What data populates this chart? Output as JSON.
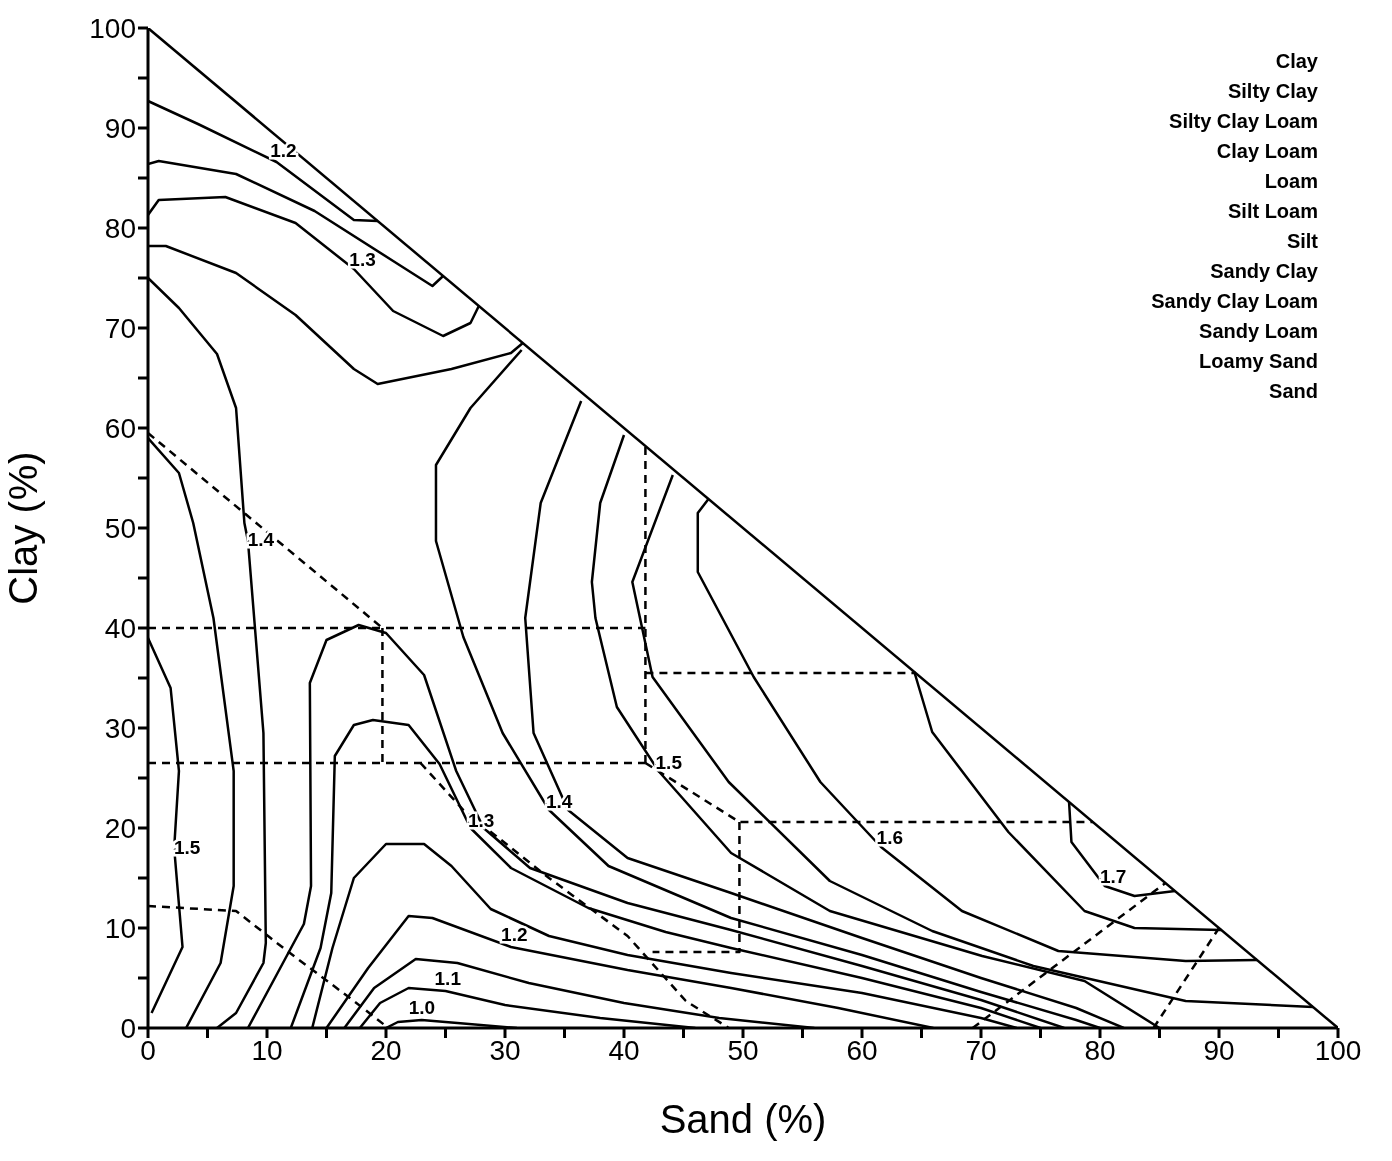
{
  "chart_data": {
    "type": "line",
    "xlabel": "Sand (%)",
    "ylabel": "Clay (%)",
    "xlim": [
      0,
      100
    ],
    "ylim": [
      0,
      100
    ],
    "xticks": [
      0,
      {
        "value": 5,
        "label": null
      },
      10,
      {
        "value": 15,
        "label": null
      },
      20,
      {
        "value": 25,
        "label": null
      },
      30,
      {
        "value": 35,
        "label": null
      },
      40,
      {
        "value": 45,
        "label": null
      },
      50,
      {
        "value": 55,
        "label": null
      },
      60,
      {
        "value": 65,
        "label": null
      },
      70,
      {
        "value": 75,
        "label": null
      },
      80,
      {
        "value": 85,
        "label": null
      },
      90,
      {
        "value": 95,
        "label": null
      },
      100
    ],
    "yticks": [
      0,
      {
        "value": 5,
        "label": null
      },
      10,
      {
        "value": 15,
        "label": null
      },
      20,
      {
        "value": 25,
        "label": null
      },
      30,
      {
        "value": 35,
        "label": null
      },
      40,
      {
        "value": 45,
        "label": null
      },
      50,
      {
        "value": 55,
        "label": null
      },
      60,
      {
        "value": 65,
        "label": null
      },
      70,
      {
        "value": 75,
        "label": null
      },
      80,
      {
        "value": 85,
        "label": null
      },
      90,
      {
        "value": 95,
        "label": null
      },
      100
    ],
    "grid": false,
    "marker": "none",
    "line_style": "solid",
    "series": [
      {
        "color": "#000000",
        "x": [
          0,
          100
        ],
        "values": [
          100,
          0
        ]
      },
      {
        "name": "1.2",
        "color": "#000000",
        "x": [
          0,
          4.2,
          10.8,
          17.3,
          19.3
        ],
        "values": [
          92.7,
          90.4,
          86.6,
          80.8,
          80.7
        ]
      },
      {
        "color": "#000000",
        "x": [
          0,
          0.9,
          7.4,
          14,
          20.6,
          23.9,
          24.8
        ],
        "values": [
          86.4,
          86.7,
          85.4,
          81.7,
          76.7,
          74.2,
          75.2
        ]
      },
      {
        "name": "1.3",
        "color": "#000000",
        "x": [
          0,
          0.9,
          6.5,
          12.4,
          17.3,
          20.6,
          24.8,
          27.1,
          27.8
        ],
        "values": [
          81.3,
          82.8,
          83.1,
          80.5,
          75.9,
          71.7,
          69.2,
          70.5,
          72.2
        ]
      },
      {
        "color": "#000000",
        "x": [
          0,
          1.5,
          7.4,
          12.4,
          17.3,
          19.3,
          25.5,
          30.5,
          31.5
        ],
        "values": [
          78.2,
          78.2,
          75.5,
          71.3,
          65.9,
          64.4,
          65.9,
          67.5,
          68.5
        ]
      },
      {
        "name": "1.4",
        "color": "#000000",
        "x": [
          0,
          2.6,
          5.8,
          7.4,
          8.1,
          8.4,
          9.7,
          9.9,
          9.7,
          7.4,
          5.8
        ],
        "values": [
          75,
          72,
          67.4,
          62,
          50.5,
          48.7,
          29.5,
          8.5,
          6.5,
          1.5,
          0
        ]
      },
      {
        "color": "#000000",
        "x": [
          0,
          2.6,
          3.8,
          5.5,
          7.2,
          7.2,
          6.1,
          3.2
        ],
        "values": [
          59,
          55.5,
          50.5,
          41,
          25.7,
          14.2,
          6.5,
          0
        ]
      },
      {
        "name": "1.5",
        "color": "#000000",
        "x": [
          0,
          1.9,
          2.6,
          2.2,
          2.9,
          0.3
        ],
        "values": [
          39,
          34,
          25.7,
          18,
          8.1,
          1.5
        ]
      },
      {
        "color": "#000000",
        "x": [
          8.4,
          13.1,
          13.7,
          13.6,
          15,
          17.7,
          20,
          23.2,
          25.9,
          28.2,
          32.1,
          40.3,
          49,
          60,
          70,
          77
        ],
        "values": [
          0,
          10.4,
          14.2,
          34.5,
          38.8,
          40.3,
          39.5,
          35.3,
          25.7,
          20,
          16,
          12.5,
          9.8,
          6.2,
          2.8,
          0
        ]
      },
      {
        "name": "1.3",
        "color": "#000000",
        "x": [
          12,
          14.5,
          15.4,
          15.7,
          17.3,
          18.9,
          21.9,
          24.5,
          27.1,
          30.5,
          37,
          43.5,
          49,
          60,
          70,
          75
        ],
        "values": [
          0,
          8,
          13.5,
          27.2,
          30.3,
          30.8,
          30.3,
          26.4,
          20,
          16,
          12,
          9.6,
          8,
          5,
          2,
          0
        ]
      },
      {
        "color": "#000000",
        "x": [
          13.8,
          15.5,
          17.3,
          20,
          23.2,
          25.5,
          28.8,
          33.7,
          40.3,
          49,
          60,
          70,
          73
        ],
        "values": [
          0,
          8,
          15,
          18.4,
          18.4,
          16.2,
          11.9,
          9.2,
          7.3,
          5.5,
          3.5,
          1,
          0
        ]
      },
      {
        "name": "1.2",
        "color": "#000000",
        "x": [
          15,
          18.5,
          21.9,
          23.9,
          30.5,
          40.3,
          49,
          58,
          66
        ],
        "values": [
          0,
          6,
          11.2,
          11,
          8.1,
          5.8,
          4,
          2,
          0
        ]
      },
      {
        "color": "#000000",
        "x": [
          16.5,
          19,
          22.5,
          26,
          32,
          40,
          48,
          56
        ],
        "values": [
          0,
          4,
          6.9,
          6.5,
          4.5,
          2.5,
          1,
          0
        ]
      },
      {
        "name": "1.1",
        "color": "#000000",
        "x": [
          17.8,
          19.5,
          21.9,
          25,
          30,
          38,
          46
        ],
        "values": [
          0,
          2.5,
          4,
          3.7,
          2.3,
          1,
          0
        ]
      },
      {
        "name": "1.0",
        "color": "#000000",
        "x": [
          20,
          21,
          23,
          26,
          31
        ],
        "values": [
          0,
          0.6,
          0.8,
          0.5,
          0
        ]
      },
      {
        "name": "1.4",
        "color": "#000000",
        "x": [
          31.4,
          27.1,
          24.2,
          24.2,
          26.5,
          29.8,
          33.7,
          38.7,
          49,
          60,
          70,
          78,
          80
        ],
        "values": [
          67.8,
          62,
          56.3,
          48.7,
          39.1,
          29.5,
          21.8,
          16.2,
          11,
          7.3,
          3.6,
          0.8,
          0
        ]
      },
      {
        "color": "#000000",
        "x": [
          36.4,
          33,
          31.7,
          32.4,
          35.3,
          40.3,
          49,
          60,
          70,
          78,
          82
        ],
        "values": [
          62.7,
          52.5,
          41,
          29.5,
          21.8,
          17,
          13.5,
          9,
          5,
          2,
          0
        ]
      },
      {
        "name": "1.5",
        "color": "#000000",
        "x": [
          40,
          38,
          37.3,
          37.6,
          39.4,
          42.9,
          49,
          57.3,
          70.1,
          78.7,
          85
        ],
        "values": [
          59.3,
          52.5,
          44.6,
          41,
          32.1,
          25.7,
          17.5,
          11.7,
          7.2,
          4.7,
          0
        ]
      },
      {
        "color": "#000000",
        "x": [
          44.1,
          40.7,
          42.4,
          48.8,
          57.3,
          65.9,
          74.4,
          87.2,
          97.9
        ],
        "values": [
          55.3,
          44.6,
          35.1,
          24.6,
          14.7,
          9.7,
          6.2,
          2.7,
          2.1
        ]
      },
      {
        "name": "1.6",
        "color": "#000000",
        "x": [
          47.1,
          46.2,
          46.2,
          50.9,
          56.5,
          61.6,
          68.4,
          76.5,
          87.2,
          93.2
        ],
        "values": [
          52.9,
          51.5,
          45.6,
          35.1,
          24.6,
          18.1,
          11.7,
          7.7,
          6.7,
          6.8
        ]
      },
      {
        "color": "#000000",
        "x": [
          64.4,
          65.9,
          72.3,
          78.7,
          82.9,
          90.2
        ],
        "values": [
          35.6,
          29.6,
          19.6,
          11.7,
          10,
          9.8
        ]
      },
      {
        "name": "1.7",
        "color": "#000000",
        "x": [
          77.4,
          77.6,
          80.4,
          82.9,
          86.3
        ],
        "values": [
          22.6,
          18.6,
          14.2,
          13.2,
          13.7
        ]
      },
      {
        "color": "#000000",
        "line_style": "dashed",
        "x": [
          0,
          19.7
        ],
        "values": [
          59.5,
          40
        ]
      },
      {
        "color": "#000000",
        "line_style": "dashed",
        "x": [
          0,
          41.8
        ],
        "values": [
          40,
          40
        ]
      },
      {
        "color": "#000000",
        "line_style": "dashed",
        "x": [
          19.7,
          19.7
        ],
        "values": [
          40,
          26.5
        ]
      },
      {
        "color": "#000000",
        "line_style": "dashed",
        "x": [
          0,
          41.8
        ],
        "values": [
          26.5,
          26.5
        ]
      },
      {
        "color": "#000000",
        "line_style": "dashed",
        "x": [
          41.8,
          41.8
        ],
        "values": [
          26.5,
          58.2
        ]
      },
      {
        "color": "#000000",
        "line_style": "dashed",
        "x": [
          41.8,
          64.5
        ],
        "values": [
          35.5,
          35.5
        ]
      },
      {
        "color": "#000000",
        "line_style": "dashed",
        "x": [
          41.8,
          49.7,
          79.4
        ],
        "values": [
          26.5,
          20.6,
          20.6
        ]
      },
      {
        "color": "#000000",
        "line_style": "dashed",
        "x": [
          49.7,
          49.7,
          42.4
        ],
        "values": [
          20.6,
          7.6,
          7.6
        ]
      },
      {
        "color": "#000000",
        "line_style": "dashed",
        "x": [
          22.9,
          26.5,
          33.7,
          40.3,
          45.2,
          48.8
        ],
        "values": [
          26.5,
          21.8,
          15,
          9.2,
          2.7,
          0
        ]
      },
      {
        "color": "#000000",
        "line_style": "dashed",
        "x": [
          0,
          7.4,
          11.7,
          17.3,
          20.2
        ],
        "values": [
          12.2,
          11.7,
          7.7,
          2.7,
          0
        ]
      },
      {
        "color": "#000000",
        "line_style": "dashed",
        "x": [
          69.3,
          85.5
        ],
        "values": [
          0,
          14.5
        ]
      },
      {
        "color": "#000000",
        "line_style": "dashed",
        "x": [
          84.5,
          90
        ],
        "values": [
          0,
          10
        ]
      }
    ],
    "annotations": [
      "Clay",
      "Silty Clay",
      "Silty Clay Loam",
      "Clay Loam",
      "Loam",
      "Silt Loam",
      "Silt",
      "Sandy Clay",
      "Sandy Clay Loam",
      "Sandy Loam",
      "Loamy Sand",
      "Sand"
    ]
  }
}
